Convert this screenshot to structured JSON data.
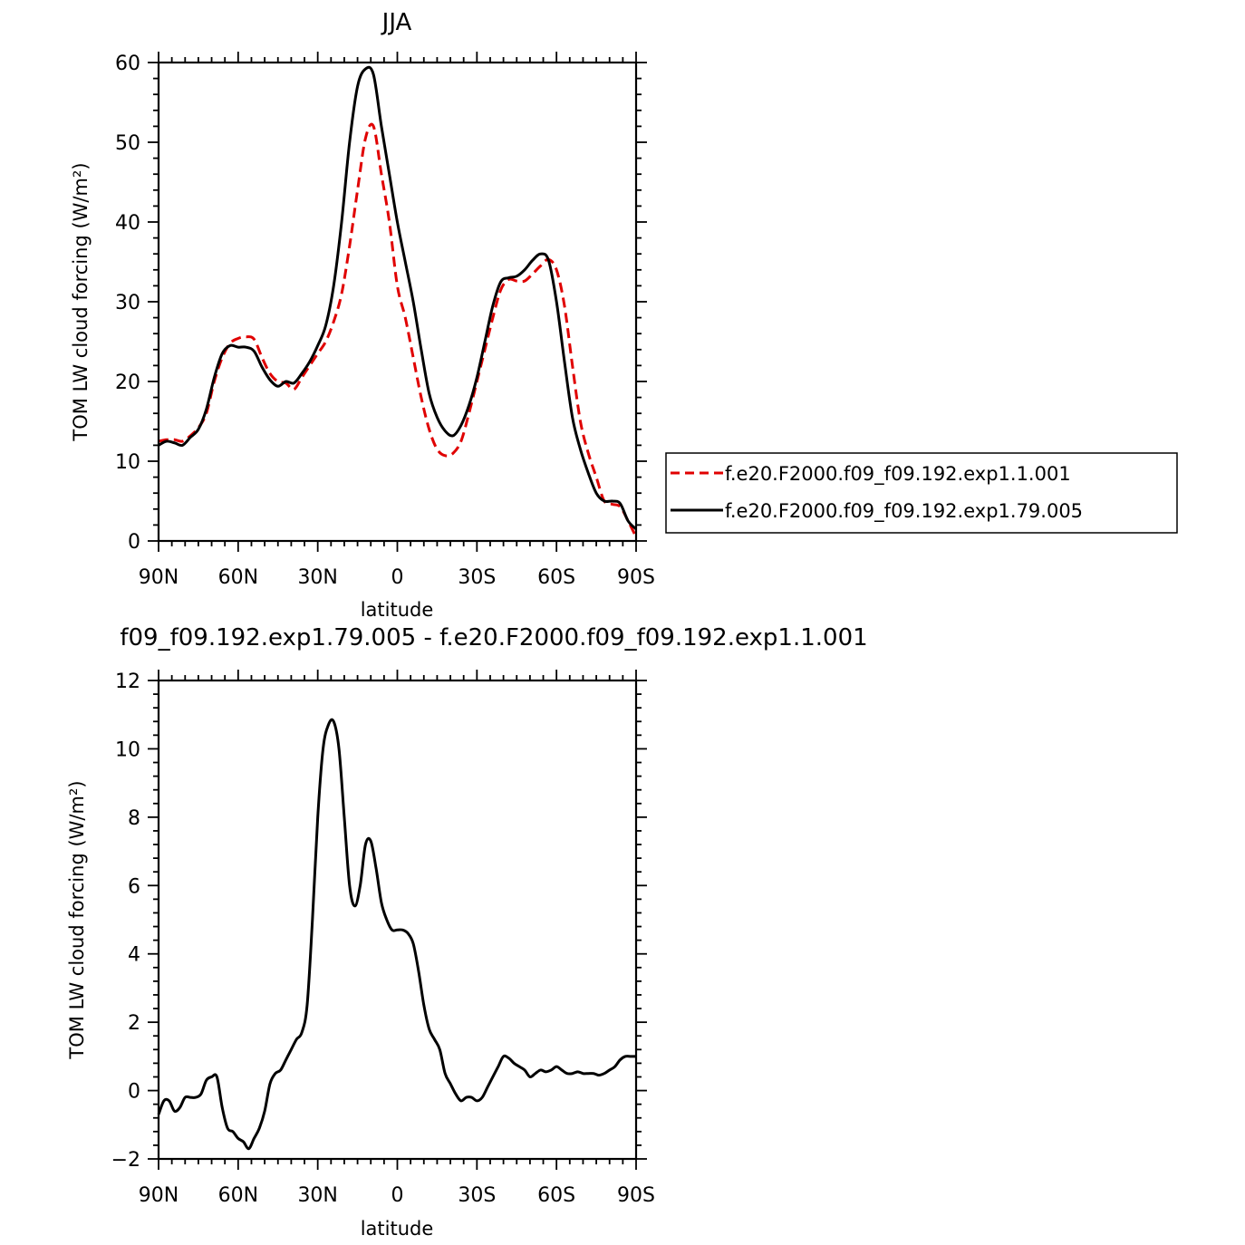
{
  "chart_data": [
    {
      "type": "line",
      "title": "JJA",
      "xlabel": "latitude",
      "ylabel": "TOM LW cloud forcing (W/m²)",
      "xlim": [
        90,
        -90
      ],
      "ylim": [
        0,
        60
      ],
      "xticks": [
        {
          "v": 90,
          "label": "90N"
        },
        {
          "v": 60,
          "label": "60N"
        },
        {
          "v": 30,
          "label": "30N"
        },
        {
          "v": 0,
          "label": "0"
        },
        {
          "v": -30,
          "label": "30S"
        },
        {
          "v": -60,
          "label": "60S"
        },
        {
          "v": -90,
          "label": "90S"
        }
      ],
      "yticks": [
        {
          "v": 0,
          "label": "0"
        },
        {
          "v": 10,
          "label": "10"
        },
        {
          "v": 20,
          "label": "20"
        },
        {
          "v": 30,
          "label": "30"
        },
        {
          "v": 40,
          "label": "40"
        },
        {
          "v": 50,
          "label": "50"
        },
        {
          "v": 60,
          "label": "60"
        }
      ],
      "legend_position": "right",
      "series": [
        {
          "name": "f.e20.F2000.f09_f09.192.exp1.1.001",
          "color": "#e00000",
          "dash": "dashed",
          "x": [
            90,
            87,
            84,
            81,
            78,
            75,
            72,
            69,
            66,
            63,
            60,
            57,
            54,
            51,
            48,
            45,
            42,
            39,
            36,
            33,
            30,
            27,
            24,
            21,
            18,
            15,
            12,
            9,
            6,
            3,
            0,
            -3,
            -6,
            -9,
            -12,
            -15,
            -18,
            -21,
            -24,
            -27,
            -30,
            -33,
            -36,
            -39,
            -42,
            -45,
            -48,
            -51,
            -54,
            -57,
            -60,
            -63,
            -66,
            -69,
            -72,
            -75,
            -78,
            -81,
            -84,
            -87,
            -90
          ],
          "y": [
            12.5,
            12.7,
            12.7,
            12.5,
            13.2,
            14.2,
            16.0,
            20.0,
            23.0,
            24.8,
            25.4,
            25.6,
            25.3,
            23.0,
            21.0,
            20.0,
            19.8,
            19.0,
            20.5,
            22.0,
            23.5,
            25.0,
            27.5,
            31.0,
            37.0,
            44.0,
            50.5,
            52.0,
            46.0,
            40.0,
            32.0,
            28.0,
            23.0,
            18.0,
            14.0,
            11.5,
            10.7,
            11.0,
            12.5,
            16.0,
            20.0,
            24.0,
            28.0,
            31.5,
            32.8,
            32.6,
            32.6,
            33.5,
            34.5,
            35.3,
            34.0,
            29.5,
            22.0,
            15.0,
            11.0,
            8.0,
            5.0,
            4.6,
            4.3,
            2.5,
            0.5
          ]
        },
        {
          "name": "f.e20.F2000.f09_f09.192.exp1.79.005",
          "color": "#000000",
          "dash": "solid",
          "x": [
            90,
            87,
            84,
            81,
            78,
            75,
            72,
            69,
            66,
            63,
            60,
            57,
            54,
            51,
            48,
            45,
            42,
            39,
            36,
            33,
            30,
            27,
            24,
            21,
            18,
            15,
            12,
            9,
            6,
            3,
            0,
            -3,
            -6,
            -9,
            -12,
            -15,
            -18,
            -21,
            -24,
            -27,
            -30,
            -33,
            -36,
            -39,
            -42,
            -45,
            -48,
            -51,
            -54,
            -57,
            -60,
            -63,
            -66,
            -69,
            -72,
            -75,
            -78,
            -81,
            -84,
            -87,
            -90
          ],
          "y": [
            12.0,
            12.5,
            12.3,
            12.0,
            13.0,
            14.0,
            16.5,
            20.5,
            23.5,
            24.5,
            24.3,
            24.3,
            23.8,
            21.8,
            20.2,
            19.4,
            20.0,
            19.8,
            21.0,
            22.5,
            24.5,
            27.0,
            32.0,
            40.0,
            50.0,
            57.0,
            59.2,
            58.5,
            52.0,
            46.0,
            40.0,
            35.0,
            30.0,
            24.0,
            18.5,
            15.5,
            13.8,
            13.2,
            14.5,
            17.0,
            20.5,
            25.0,
            29.5,
            32.5,
            33.0,
            33.2,
            34.0,
            35.2,
            36.0,
            35.2,
            30.0,
            22.5,
            15.5,
            11.5,
            8.5,
            6.0,
            5.0,
            5.0,
            4.7,
            2.5,
            1.5
          ]
        }
      ]
    },
    {
      "type": "line",
      "title": "f09_f09.192.exp1.79.005 - f.e20.F2000.f09_f09.192.exp1.1.001",
      "xlabel": "latitude",
      "ylabel": "TOM LW cloud forcing (W/m²)",
      "xlim": [
        90,
        -90
      ],
      "ylim": [
        -2,
        12
      ],
      "xticks": [
        {
          "v": 90,
          "label": "90N"
        },
        {
          "v": 60,
          "label": "60N"
        },
        {
          "v": 30,
          "label": "30N"
        },
        {
          "v": 0,
          "label": "0"
        },
        {
          "v": -30,
          "label": "30S"
        },
        {
          "v": -60,
          "label": "60S"
        },
        {
          "v": -90,
          "label": "90S"
        }
      ],
      "yticks": [
        {
          "v": -2,
          "label": "−2"
        },
        {
          "v": 0,
          "label": "0"
        },
        {
          "v": 2,
          "label": "2"
        },
        {
          "v": 4,
          "label": "4"
        },
        {
          "v": 6,
          "label": "6"
        },
        {
          "v": 8,
          "label": "8"
        },
        {
          "v": 10,
          "label": "10"
        },
        {
          "v": 12,
          "label": "12"
        }
      ],
      "series": [
        {
          "color": "#000000",
          "dash": "solid",
          "x": [
            90,
            88,
            86,
            84,
            82,
            80,
            78,
            76,
            74,
            72,
            70,
            68,
            66,
            64,
            62,
            60,
            58,
            56,
            54,
            52,
            50,
            48,
            46,
            44,
            42,
            40,
            38,
            36,
            34,
            32,
            30,
            28,
            26,
            24,
            22,
            20,
            18,
            16,
            14,
            12,
            10,
            8,
            6,
            4,
            2,
            0,
            -2,
            -4,
            -6,
            -8,
            -10,
            -12,
            -14,
            -16,
            -18,
            -20,
            -22,
            -24,
            -26,
            -28,
            -30,
            -32,
            -34,
            -36,
            -38,
            -40,
            -42,
            -44,
            -46,
            -48,
            -50,
            -52,
            -54,
            -56,
            -58,
            -60,
            -62,
            -64,
            -66,
            -68,
            -70,
            -72,
            -74,
            -76,
            -78,
            -80,
            -82,
            -84,
            -86,
            -88,
            -90
          ],
          "y": [
            -0.7,
            -0.3,
            -0.3,
            -0.6,
            -0.5,
            -0.2,
            -0.2,
            -0.2,
            -0.1,
            0.3,
            0.4,
            0.4,
            -0.5,
            -1.1,
            -1.2,
            -1.4,
            -1.5,
            -1.7,
            -1.4,
            -1.1,
            -0.6,
            0.2,
            0.5,
            0.6,
            0.9,
            1.2,
            1.5,
            1.7,
            2.5,
            5.0,
            8.0,
            10.0,
            10.7,
            10.8,
            10.0,
            8.0,
            6.0,
            5.4,
            6.0,
            7.2,
            7.3,
            6.5,
            5.5,
            5.0,
            4.7,
            4.7,
            4.7,
            4.6,
            4.3,
            3.5,
            2.5,
            1.8,
            1.5,
            1.2,
            0.5,
            0.2,
            -0.1,
            -0.3,
            -0.2,
            -0.2,
            -0.3,
            -0.2,
            0.1,
            0.4,
            0.7,
            1.0,
            0.95,
            0.8,
            0.7,
            0.6,
            0.4,
            0.5,
            0.6,
            0.55,
            0.6,
            0.7,
            0.6,
            0.5,
            0.5,
            0.55,
            0.5,
            0.5,
            0.5,
            0.45,
            0.5,
            0.6,
            0.7,
            0.9,
            1.0,
            1.0,
            1.0
          ]
        }
      ]
    }
  ]
}
